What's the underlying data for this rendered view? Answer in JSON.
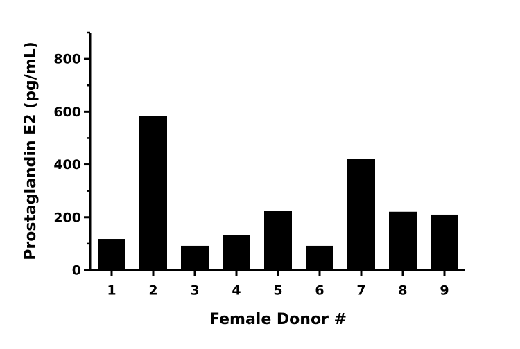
{
  "chart_data": {
    "type": "bar",
    "x_label": "Female Donor #",
    "y_label": "Prostaglandin E2 (pg/mL)",
    "categories": [
      "1",
      "2",
      "3",
      "4",
      "5",
      "6",
      "7",
      "8",
      "9"
    ],
    "values": [
      118,
      584,
      92,
      132,
      224,
      92,
      421,
      221,
      210
    ],
    "color": "#000000",
    "ylim": [
      0,
      900
    ],
    "yticks": [
      0,
      200,
      400,
      600,
      800
    ],
    "minor_yticks": [
      100,
      300,
      500,
      700,
      900
    ],
    "grid": false
  }
}
